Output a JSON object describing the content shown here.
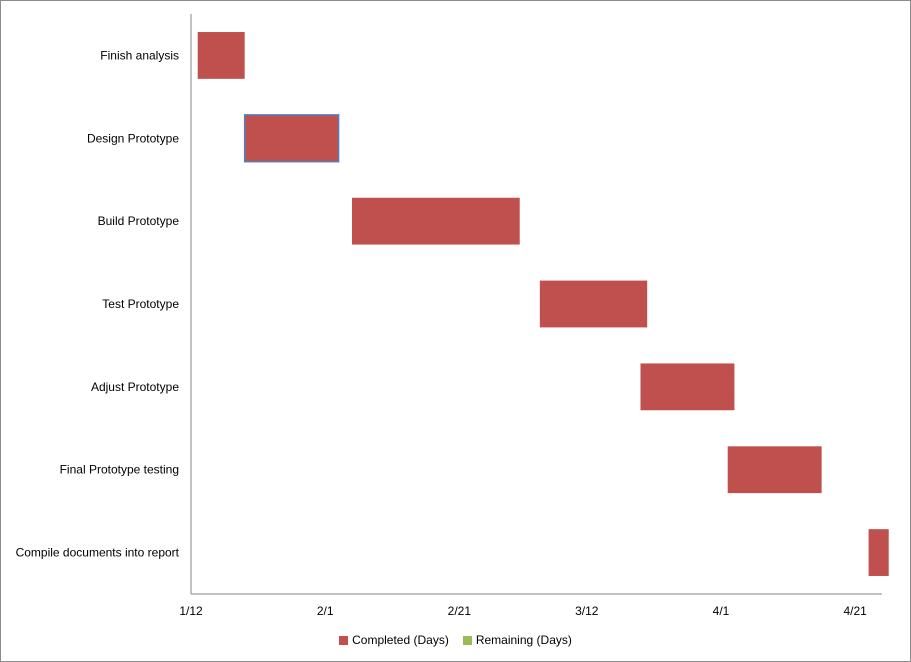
{
  "chart_data": {
    "type": "gantt",
    "tasks": [
      {
        "name": "Finish analysis",
        "start": "1/13",
        "completed_days": 7,
        "remaining_days": 0
      },
      {
        "name": "Design Prototype",
        "start": "1/20",
        "completed_days": 14,
        "remaining_days": 0
      },
      {
        "name": "Build Prototype",
        "start": "2/5",
        "completed_days": 25,
        "remaining_days": 0
      },
      {
        "name": "Test Prototype",
        "start": "3/5",
        "completed_days": 16,
        "remaining_days": 0
      },
      {
        "name": "Adjust Prototype",
        "start": "3/20",
        "completed_days": 14,
        "remaining_days": 0
      },
      {
        "name": "Final Prototype testing",
        "start": "4/2",
        "completed_days": 14,
        "remaining_days": 0
      },
      {
        "name": "Compile documents into report",
        "start": "4/23",
        "completed_days": 3,
        "remaining_days": 0
      }
    ],
    "x_ticks": [
      "1/12",
      "2/1",
      "2/21",
      "3/12",
      "4/1",
      "4/21"
    ],
    "xlim": [
      "1/12",
      "4/25"
    ],
    "series": [
      {
        "name": "Completed (Days)",
        "color": "#c0504d"
      },
      {
        "name": "Remaining (Days)",
        "color": "#9bbb59"
      }
    ],
    "highlighted_task": "Design Prototype",
    "highlight_color": "#4f81bd",
    "grid": false,
    "legend_position": "bottom"
  }
}
